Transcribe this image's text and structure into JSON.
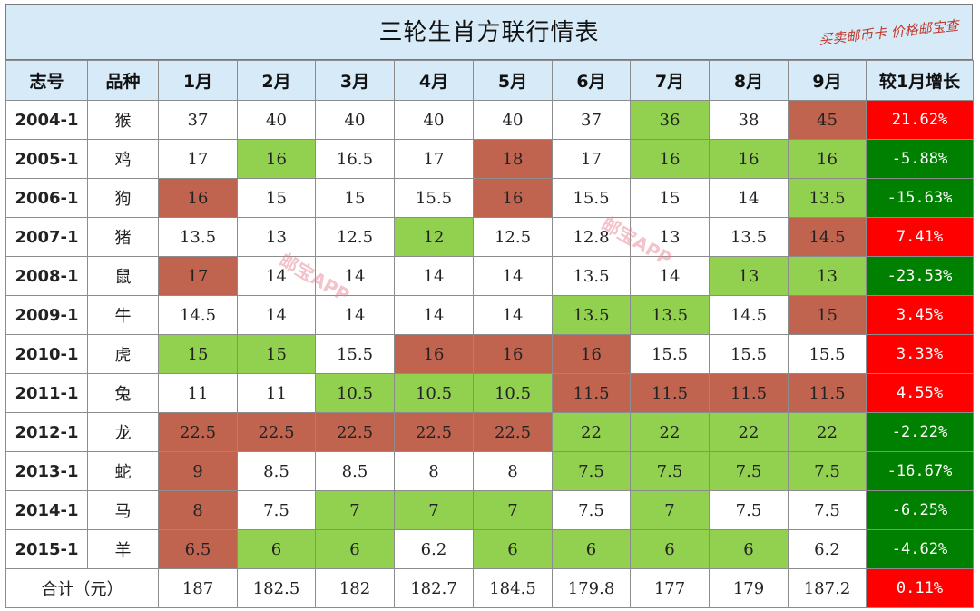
{
  "title": "三轮生肖方联行情表",
  "stamp": "买卖邮币卡 价格邮宝查",
  "watermark": "邮宝APP",
  "colors": {
    "header_bg": "#d6eaf8",
    "green_cell": "#92d050",
    "red_cell": "#c0644f",
    "growth_positive": "#ff0000",
    "growth_negative": "#008000",
    "total_text": "#e00000"
  },
  "headers": [
    "志号",
    "品种",
    "1月",
    "2月",
    "3月",
    "4月",
    "5月",
    "6月",
    "7月",
    "8月",
    "9月",
    "较1月增长"
  ],
  "rows": [
    {
      "code": "2004-1",
      "zodiac": "猴",
      "months": [
        "37",
        "40",
        "40",
        "40",
        "40",
        "37",
        "36",
        "38",
        "45"
      ],
      "fills": [
        "w",
        "w",
        "w",
        "w",
        "w",
        "w",
        "g",
        "w",
        "r"
      ],
      "growth": "21.62%",
      "growth_dir": "up"
    },
    {
      "code": "2005-1",
      "zodiac": "鸡",
      "months": [
        "17",
        "16",
        "16.5",
        "17",
        "18",
        "17",
        "16",
        "16",
        "16"
      ],
      "fills": [
        "w",
        "g",
        "w",
        "w",
        "r",
        "w",
        "g",
        "g",
        "g"
      ],
      "growth": "-5.88%",
      "growth_dir": "down"
    },
    {
      "code": "2006-1",
      "zodiac": "狗",
      "months": [
        "16",
        "15",
        "15",
        "15.5",
        "16",
        "15.5",
        "15",
        "14",
        "13.5"
      ],
      "fills": [
        "r",
        "w",
        "w",
        "w",
        "r",
        "w",
        "w",
        "w",
        "g"
      ],
      "growth": "-15.63%",
      "growth_dir": "down"
    },
    {
      "code": "2007-1",
      "zodiac": "猪",
      "months": [
        "13.5",
        "13",
        "12.5",
        "12",
        "12.5",
        "12.8",
        "13",
        "13.5",
        "14.5"
      ],
      "fills": [
        "w",
        "w",
        "w",
        "g",
        "w",
        "w",
        "w",
        "w",
        "r"
      ],
      "growth": "7.41%",
      "growth_dir": "up"
    },
    {
      "code": "2008-1",
      "zodiac": "鼠",
      "months": [
        "17",
        "14",
        "14",
        "14",
        "14",
        "13.5",
        "14",
        "13",
        "13"
      ],
      "fills": [
        "r",
        "w",
        "w",
        "w",
        "w",
        "w",
        "w",
        "g",
        "g"
      ],
      "growth": "-23.53%",
      "growth_dir": "down"
    },
    {
      "code": "2009-1",
      "zodiac": "牛",
      "months": [
        "14.5",
        "14",
        "14",
        "14",
        "14",
        "13.5",
        "13.5",
        "14.5",
        "15"
      ],
      "fills": [
        "w",
        "w",
        "w",
        "w",
        "w",
        "g",
        "g",
        "w",
        "r"
      ],
      "growth": "3.45%",
      "growth_dir": "up"
    },
    {
      "code": "2010-1",
      "zodiac": "虎",
      "months": [
        "15",
        "15",
        "15.5",
        "16",
        "16",
        "16",
        "15.5",
        "15.5",
        "15.5"
      ],
      "fills": [
        "g",
        "g",
        "w",
        "r",
        "r",
        "r",
        "w",
        "w",
        "w"
      ],
      "growth": "3.33%",
      "growth_dir": "up"
    },
    {
      "code": "2011-1",
      "zodiac": "兔",
      "months": [
        "11",
        "11",
        "10.5",
        "10.5",
        "10.5",
        "11.5",
        "11.5",
        "11.5",
        "11.5"
      ],
      "fills": [
        "w",
        "w",
        "g",
        "g",
        "g",
        "r",
        "r",
        "r",
        "r"
      ],
      "growth": "4.55%",
      "growth_dir": "up"
    },
    {
      "code": "2012-1",
      "zodiac": "龙",
      "months": [
        "22.5",
        "22.5",
        "22.5",
        "22.5",
        "22.5",
        "22",
        "22",
        "22",
        "22"
      ],
      "fills": [
        "r",
        "r",
        "r",
        "r",
        "r",
        "g",
        "g",
        "g",
        "g"
      ],
      "growth": "-2.22%",
      "growth_dir": "down"
    },
    {
      "code": "2013-1",
      "zodiac": "蛇",
      "months": [
        "9",
        "8.5",
        "8.5",
        "8",
        "8",
        "7.5",
        "7.5",
        "7.5",
        "7.5"
      ],
      "fills": [
        "r",
        "w",
        "w",
        "w",
        "w",
        "g",
        "g",
        "g",
        "g"
      ],
      "growth": "-16.67%",
      "growth_dir": "down"
    },
    {
      "code": "2014-1",
      "zodiac": "马",
      "months": [
        "8",
        "7.5",
        "7",
        "7",
        "7",
        "7.5",
        "7",
        "7.5",
        "7.5"
      ],
      "fills": [
        "r",
        "w",
        "g",
        "g",
        "g",
        "w",
        "g",
        "w",
        "w"
      ],
      "growth": "-6.25%",
      "growth_dir": "down"
    },
    {
      "code": "2015-1",
      "zodiac": "羊",
      "months": [
        "6.5",
        "6",
        "6",
        "6.2",
        "6",
        "6",
        "6",
        "6",
        "6.2"
      ],
      "fills": [
        "r",
        "g",
        "g",
        "w",
        "g",
        "g",
        "g",
        "g",
        "w"
      ],
      "growth": "-4.62%",
      "growth_dir": "down"
    }
  ],
  "total": {
    "label": "合计（元）",
    "months": [
      "187",
      "182.5",
      "182",
      "182.7",
      "184.5",
      "179.8",
      "177",
      "179",
      "187.2"
    ],
    "growth": "0.11%",
    "growth_dir": "up"
  }
}
